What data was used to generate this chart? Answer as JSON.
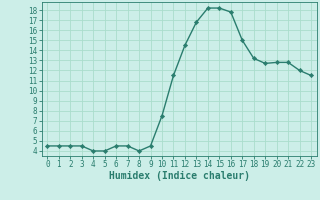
{
  "x": [
    0,
    1,
    2,
    3,
    4,
    5,
    6,
    7,
    8,
    9,
    10,
    11,
    12,
    13,
    14,
    15,
    16,
    17,
    18,
    19,
    20,
    21,
    22,
    23
  ],
  "y": [
    4.5,
    4.5,
    4.5,
    4.5,
    4.0,
    4.0,
    4.5,
    4.5,
    4.0,
    4.5,
    7.5,
    11.5,
    14.5,
    16.8,
    18.2,
    18.2,
    17.8,
    15.0,
    13.2,
    12.7,
    12.8,
    12.8,
    12.0,
    11.5
  ],
  "line_color": "#2a7d6e",
  "marker": "D",
  "marker_size": 2.2,
  "bg_color": "#cceee8",
  "grid_color": "#aaddcc",
  "xlabel": "Humidex (Indice chaleur)",
  "xlim": [
    -0.5,
    23.5
  ],
  "ylim": [
    3.5,
    18.8
  ],
  "yticks": [
    4,
    5,
    6,
    7,
    8,
    9,
    10,
    11,
    12,
    13,
    14,
    15,
    16,
    17,
    18
  ],
  "xticks": [
    0,
    1,
    2,
    3,
    4,
    5,
    6,
    7,
    8,
    9,
    10,
    11,
    12,
    13,
    14,
    15,
    16,
    17,
    18,
    19,
    20,
    21,
    22,
    23
  ],
  "tick_fontsize": 5.5,
  "xlabel_fontsize": 7.0,
  "axis_color": "#2a7d6e"
}
